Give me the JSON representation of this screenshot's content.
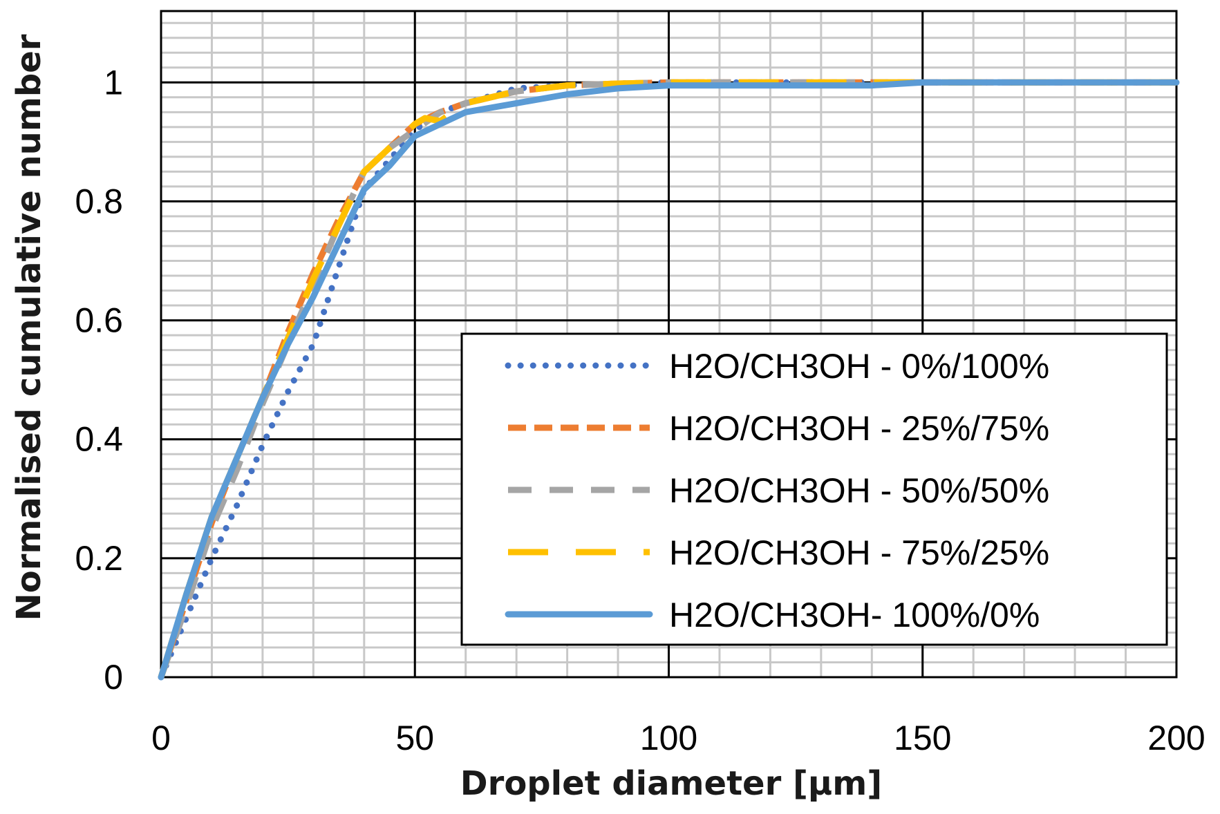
{
  "chart_data": {
    "type": "line",
    "xlabel": "Droplet diameter [μm]",
    "ylabel": "Normalised cumulative number",
    "xlim": [
      0,
      200
    ],
    "ylim": [
      0,
      1.12
    ],
    "x_ticks": [
      "0",
      "50",
      "100",
      "150",
      "200"
    ],
    "x_tick_values": [
      0,
      50,
      100,
      150,
      200
    ],
    "y_ticks": [
      "0",
      "0.2",
      "0.4",
      "0.6",
      "0.8",
      "1"
    ],
    "y_tick_values": [
      0,
      0.2,
      0.4,
      0.6,
      0.8,
      1
    ],
    "grid": "major and minor",
    "legend_position": "bottom-right",
    "series": [
      {
        "name": "H2O/CH3OH - 0%/100%",
        "color": "#4472C4",
        "style": "dotted",
        "x": [
          0,
          5,
          10,
          15,
          20,
          25,
          30,
          35,
          40,
          45,
          50,
          55,
          60,
          70,
          80,
          90,
          100,
          110,
          120,
          130,
          140,
          150,
          200
        ],
        "y": [
          0,
          0.1,
          0.2,
          0.29,
          0.39,
          0.48,
          0.56,
          0.69,
          0.82,
          0.87,
          0.92,
          0.95,
          0.965,
          0.99,
          0.995,
          0.998,
          1.0,
          1.0,
          1.0,
          1.0,
          1.0,
          1.0,
          1.0
        ]
      },
      {
        "name": "H2O/CH3OH - 25%/75%",
        "color": "#ED7D31",
        "style": "dashed",
        "x": [
          0,
          5,
          10,
          15,
          20,
          25,
          30,
          35,
          40,
          45,
          50,
          55,
          60,
          70,
          80,
          90,
          100,
          110,
          120,
          130,
          140,
          150,
          200
        ],
        "y": [
          0,
          0.13,
          0.26,
          0.37,
          0.47,
          0.58,
          0.68,
          0.77,
          0.85,
          0.89,
          0.93,
          0.95,
          0.965,
          0.985,
          0.995,
          0.998,
          1.0,
          1.0,
          1.0,
          1.0,
          1.0,
          1.0,
          1.0
        ]
      },
      {
        "name": "H2O/CH3OH - 50%/50%",
        "color": "#A5A5A5",
        "style": "long-dash",
        "x": [
          0,
          5,
          10,
          15,
          20,
          25,
          30,
          35,
          40,
          45,
          50,
          55,
          60,
          70,
          80,
          90,
          100,
          110,
          120,
          130,
          140,
          150,
          200
        ],
        "y": [
          0,
          0.12,
          0.25,
          0.35,
          0.46,
          0.56,
          0.66,
          0.76,
          0.85,
          0.89,
          0.92,
          0.95,
          0.965,
          0.985,
          0.995,
          0.998,
          1.0,
          1.0,
          1.0,
          1.0,
          1.0,
          1.0,
          1.0
        ]
      },
      {
        "name": "H2O/CH3OH - 75%/25%",
        "color": "#FFC000",
        "style": "long-dash-gap",
        "x": [
          0,
          5,
          10,
          15,
          20,
          25,
          30,
          35,
          40,
          45,
          50,
          52,
          55,
          60,
          70,
          80,
          90,
          100,
          110,
          120,
          130,
          140,
          150,
          200
        ],
        "y": [
          0,
          0.14,
          0.27,
          0.37,
          0.47,
          0.57,
          0.67,
          0.76,
          0.85,
          0.89,
          0.93,
          0.94,
          0.935,
          0.965,
          0.985,
          0.995,
          0.998,
          1.0,
          1.0,
          1.0,
          1.0,
          1.0,
          1.0,
          1.0
        ]
      },
      {
        "name": "H2O/CH3OH- 100%/0%",
        "color": "#5B9BD5",
        "style": "solid",
        "x": [
          0,
          5,
          10,
          15,
          20,
          25,
          30,
          35,
          40,
          45,
          50,
          55,
          60,
          70,
          80,
          90,
          100,
          110,
          120,
          130,
          140,
          150,
          200
        ],
        "y": [
          0,
          0.14,
          0.27,
          0.37,
          0.47,
          0.56,
          0.64,
          0.73,
          0.82,
          0.86,
          0.91,
          0.93,
          0.95,
          0.965,
          0.98,
          0.99,
          0.995,
          0.995,
          0.995,
          0.995,
          0.995,
          1.0,
          1.0
        ]
      }
    ]
  }
}
